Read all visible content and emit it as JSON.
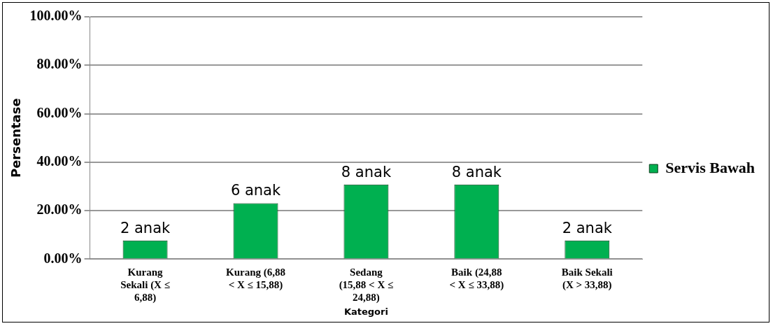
{
  "chart_data": {
    "type": "bar",
    "categories": [
      "Kurang Sekali (X ≤ 6,88)",
      "Kurang (6,88 < X ≤ 15,88)",
      "Sedang (15,88 < X ≤ 24,88)",
      "Baik (24,88 < X ≤ 33,88)",
      "Baik Sekali (X > 33,88)"
    ],
    "series": [
      {
        "name": "Servis Bawah",
        "color": "#00b050",
        "values": [
          7.69,
          23.08,
          30.77,
          30.77,
          7.69
        ]
      }
    ],
    "annotations": [
      "2 anak",
      "6 anak",
      "8 anak",
      "8 anak",
      "2 anak"
    ],
    "x_label": "Kategori",
    "y_label": "Persentase",
    "ylim": [
      0,
      100
    ],
    "yticks": [
      {
        "value": 0,
        "label": "0.00%"
      },
      {
        "value": 20,
        "label": "20.00%"
      },
      {
        "value": 40,
        "label": "40.00%"
      },
      {
        "value": 60,
        "label": "60.00%"
      },
      {
        "value": 80,
        "label": "80.00%"
      },
      {
        "value": 100,
        "label": "100.00%"
      }
    ],
    "grid": true,
    "legend": "right"
  }
}
